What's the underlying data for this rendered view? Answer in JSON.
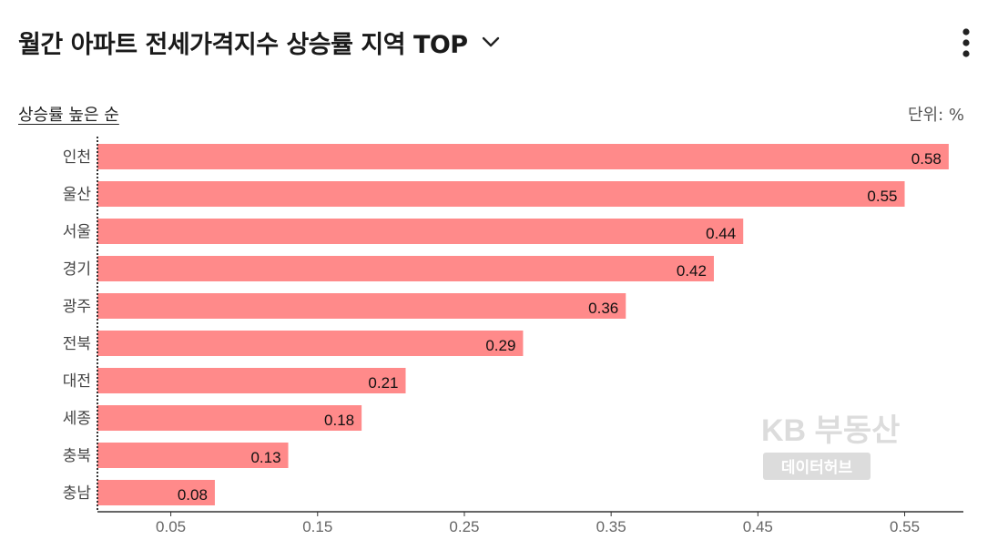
{
  "header": {
    "title": "월간 아파트 전세가격지수 상승률 지역 TOP",
    "dropdown_icon": "chevron-down-icon",
    "menu_icon": "more-vertical-icon"
  },
  "controls": {
    "sort_label": "상승률 높은 순",
    "unit_label": "단위: %"
  },
  "watermark": {
    "brand": "KB 부동산",
    "sub": "데이터허브"
  },
  "colors": {
    "bar": "#ff8a8a",
    "axis": "#333333",
    "tick_text": "#666666",
    "watermark": "#dcdcdc"
  },
  "chart_data": {
    "type": "bar",
    "orientation": "horizontal",
    "categories": [
      "인천",
      "울산",
      "서울",
      "경기",
      "광주",
      "전북",
      "대전",
      "세종",
      "충북",
      "충남"
    ],
    "values": [
      0.58,
      0.55,
      0.44,
      0.42,
      0.36,
      0.29,
      0.21,
      0.18,
      0.13,
      0.08
    ],
    "value_labels": [
      "0.58",
      "0.55",
      "0.44",
      "0.42",
      "0.36",
      "0.29",
      "0.21",
      "0.18",
      "0.13",
      "0.08"
    ],
    "x_ticks": [
      0.05,
      0.15,
      0.25,
      0.35,
      0.45,
      0.55
    ],
    "x_tick_labels": [
      "0.05",
      "0.15",
      "0.25",
      "0.35",
      "0.45",
      "0.55"
    ],
    "xlim": [
      0,
      0.59
    ],
    "unit": "%",
    "grid": false,
    "legend": "none"
  }
}
